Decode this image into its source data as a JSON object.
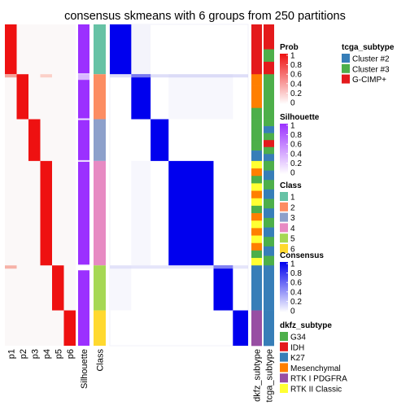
{
  "chart_data": {
    "type": "heatmap",
    "title": "consensus skmeans with 6 groups from 250 partitions",
    "groups": {
      "order": [
        "1",
        "2",
        "3",
        "4",
        "5",
        "6"
      ],
      "proportions": [
        0.155,
        0.14,
        0.13,
        0.325,
        0.14,
        0.11
      ]
    },
    "probability_columns": {
      "labels": [
        "p1",
        "p2",
        "p3",
        "p4",
        "p5",
        "p6"
      ]
    },
    "annotation_columns": {
      "silhouette_label": "Silhouette",
      "class_label": "Class",
      "dkfz_label": "dkfz_subtype",
      "tcga_label": "tcga_subtype"
    },
    "legends": {
      "prob": {
        "title": "Prob",
        "ticks": [
          "1",
          "0.8",
          "0.6",
          "0.4",
          "0.2",
          "0"
        ],
        "color_low": "#ffffff",
        "color_high": "#ee1111"
      },
      "silhouette": {
        "title": "Silhouette",
        "ticks": [
          "1",
          "0.8",
          "0.6",
          "0.4",
          "0.2",
          "0"
        ],
        "color_low": "#ffffff",
        "color_high": "#9b30ff"
      },
      "consensus": {
        "title": "Consensus",
        "ticks": [
          "1",
          "0.8",
          "0.6",
          "0.4",
          "0.2",
          "0"
        ],
        "color_low": "#ffffff",
        "color_high": "#0000ee"
      },
      "class": {
        "title": "Class",
        "items": [
          {
            "label": "1",
            "color": "#66c2a5"
          },
          {
            "label": "2",
            "color": "#fc8d62"
          },
          {
            "label": "3",
            "color": "#8da0cb"
          },
          {
            "label": "4",
            "color": "#e78ac3"
          },
          {
            "label": "5",
            "color": "#a6d854"
          },
          {
            "label": "6",
            "color": "#ffd92f"
          }
        ]
      },
      "tcga": {
        "title": "tcga_subtype",
        "items": [
          {
            "label": "Cluster #2",
            "color": "#377eb8"
          },
          {
            "label": "Cluster #3",
            "color": "#4daf4a"
          },
          {
            "label": "G-CIMP+",
            "color": "#e41a1c"
          }
        ]
      },
      "dkfz": {
        "title": "dkfz_subtype",
        "items": [
          {
            "label": "G34",
            "color": "#4daf4a"
          },
          {
            "label": "IDH",
            "color": "#e41a1c"
          },
          {
            "label": "K27",
            "color": "#377eb8"
          },
          {
            "label": "Mesenchymal",
            "color": "#ff7f00"
          },
          {
            "label": "RTK I PDGFRA",
            "color": "#984ea3"
          },
          {
            "label": "RTK II Classic",
            "color": "#ffff33"
          }
        ]
      }
    }
  }
}
